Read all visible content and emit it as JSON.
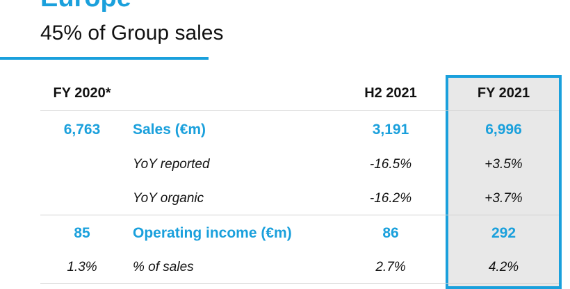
{
  "header": {
    "title": "Europe",
    "subtitle": "45% of Group sales"
  },
  "table": {
    "columns": {
      "fy2020": "FY 2020*",
      "h2_2021": "H2 2021",
      "fy2021": "FY 2021"
    },
    "rows": [
      {
        "fy2020": "6,763",
        "label": "Sales (€m)",
        "h2_2021": "3,191",
        "fy2021": "6,996",
        "style": "highlight"
      },
      {
        "fy2020": "",
        "label": "YoY reported",
        "h2_2021": "-16.5%",
        "fy2021": "+3.5%",
        "style": "italic"
      },
      {
        "fy2020": "",
        "label": "YoY organic",
        "h2_2021": "-16.2%",
        "fy2021": "+3.7%",
        "style": "italic"
      },
      {
        "fy2020": "85",
        "label": "Operating income (€m)",
        "h2_2021": "86",
        "fy2021": "292",
        "style": "highlight"
      },
      {
        "fy2020": "1.3%",
        "label": "% of sales",
        "h2_2021": "2.7%",
        "fy2021": "4.2%",
        "style": "italic"
      }
    ]
  },
  "colors": {
    "accent": "#1aa0dc",
    "highlight_fill": "#e8e8e8"
  }
}
